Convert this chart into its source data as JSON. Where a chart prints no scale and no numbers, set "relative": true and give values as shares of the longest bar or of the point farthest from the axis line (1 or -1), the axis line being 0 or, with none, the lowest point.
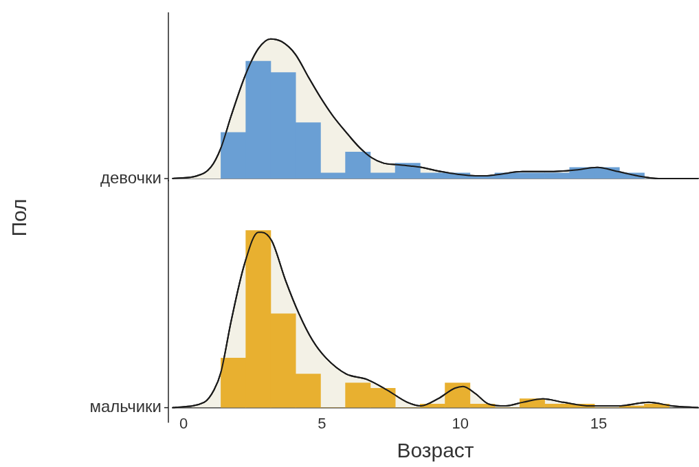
{
  "chart_data": [
    {
      "type": "histogram",
      "ylabel": "Пол",
      "relative": true,
      "tick_labels": false,
      "xlim": [
        -0.4,
        18.6
      ],
      "xticks": [
        0,
        5,
        10,
        15
      ],
      "annotations": [
        "девочки"
      ],
      "series": [
        {
          "type": "area",
          "color": "#f3f1e6",
          "x": [
            -0.4,
            0.49,
            0.98,
            1.35,
            1.72,
            2.23,
            2.7,
            3.14,
            3.55,
            4.04,
            4.53,
            4.95,
            5.39,
            5.88,
            6.37,
            6.79,
            7.23,
            7.7,
            8.2,
            8.6,
            9.3,
            9.93,
            10.54,
            10.9,
            11.4,
            12.25,
            13.2,
            14.1,
            14.95,
            15.7,
            16.4,
            17.16,
            18.6
          ],
          "values": [
            0,
            0.02,
            0.08,
            0.22,
            0.45,
            0.74,
            0.93,
            1,
            0.98,
            0.89,
            0.72,
            0.58,
            0.45,
            0.33,
            0.22,
            0.15,
            0.11,
            0.1,
            0.09,
            0.08,
            0.05,
            0.03,
            0.02,
            0.02,
            0.03,
            0.05,
            0.05,
            0.06,
            0.08,
            0.05,
            0.02,
            0,
            0
          ]
        },
        {
          "color": "#6a9fd4",
          "bins": [
            1.35,
            2.25,
            3.15,
            4.05,
            4.95,
            5.85,
            6.75,
            7.65,
            8.55,
            9.45,
            10.35,
            11.25,
            12.15,
            13.05,
            13.95,
            14.85,
            15.75,
            16.65,
            17.55
          ],
          "values": [
            0.33,
            0.84,
            0.76,
            0.4,
            0.04,
            0.19,
            0.04,
            0.11,
            0.04,
            0.04,
            0.02,
            0.04,
            0.04,
            0.04,
            0.08,
            0.08,
            0.04,
            0
          ]
        }
      ]
    },
    {
      "type": "histogram",
      "xlabel": "Возраст",
      "relative": true,
      "tick_labels": "x",
      "xlim": [
        -0.4,
        18.6
      ],
      "xticks": [
        0,
        5,
        10,
        15
      ],
      "annotations": [
        "мальчики"
      ],
      "series": [
        {
          "type": "area",
          "color": "#f3f1e6",
          "x": [
            -0.4,
            0.74,
            1.1,
            1.35,
            1.72,
            2.2,
            2.7,
            2.82,
            3.19,
            3.68,
            4.17,
            4.66,
            5.15,
            5.88,
            6.62,
            7.35,
            8.09,
            8.58,
            9.19,
            9.8,
            10.1,
            10.54,
            11.03,
            11.64,
            12.25,
            12.99,
            13.73,
            14.7,
            15.7,
            16.8,
            17.65,
            18.6
          ],
          "values": [
            0,
            0.03,
            0.1,
            0.2,
            0.49,
            0.81,
            0.99,
            0.99,
            0.94,
            0.72,
            0.53,
            0.38,
            0.28,
            0.19,
            0.16,
            0.1,
            0.03,
            0.01,
            0.05,
            0.11,
            0.12,
            0.08,
            0.02,
            0.01,
            0.03,
            0.05,
            0.03,
            0.01,
            0.01,
            0.03,
            0.01,
            0
          ]
        },
        {
          "color": "#e8b030",
          "bins": [
            1.35,
            2.25,
            3.15,
            4.05,
            4.95,
            5.85,
            6.75,
            7.65,
            8.55,
            9.45,
            10.35,
            11.25,
            12.15,
            13.05,
            13.95,
            14.85,
            15.75,
            16.65,
            17.55
          ],
          "values": [
            0.28,
            1,
            0.53,
            0.19,
            0,
            0.14,
            0.11,
            0,
            0.02,
            0.14,
            0.02,
            0,
            0.05,
            0.02,
            0.02,
            0,
            0.01,
            0.02
          ]
        }
      ]
    }
  ]
}
